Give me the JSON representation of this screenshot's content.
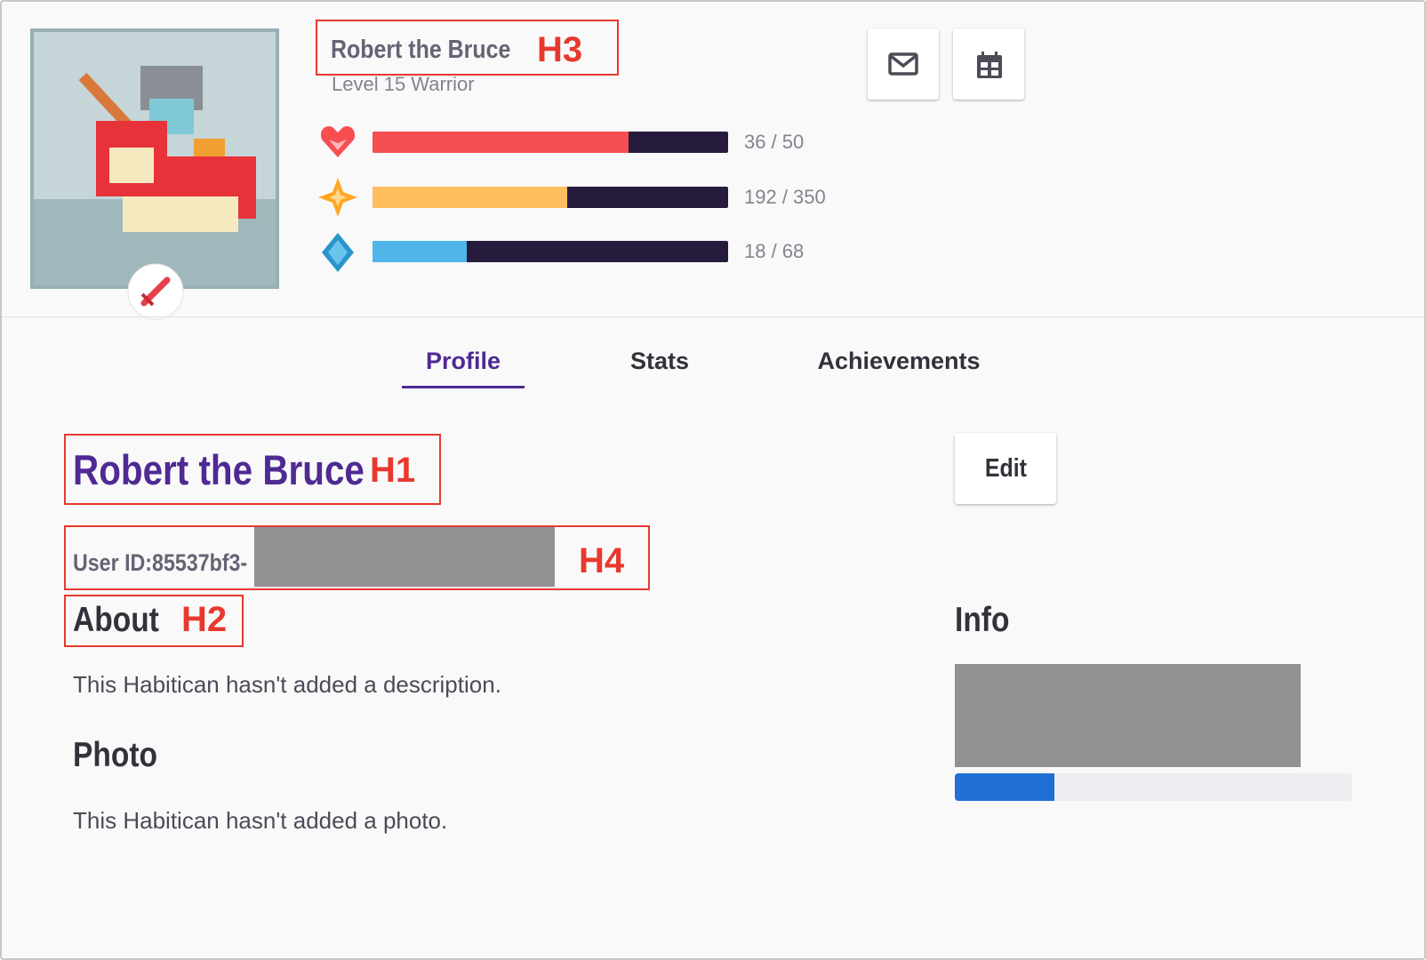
{
  "header": {
    "name": "Robert the Bruce",
    "name_tag": "H3",
    "level": "Level 15 Warrior",
    "stats": [
      {
        "value": 36,
        "max": 50,
        "label": "36 / 50"
      },
      {
        "value": 192,
        "max": 350,
        "label": "192 / 350"
      },
      {
        "value": 18,
        "max": 68,
        "label": "18 / 68"
      }
    ]
  },
  "tabs": [
    "Profile",
    "Stats",
    "Achievements"
  ],
  "profile": {
    "name": "Robert the Bruce",
    "name_tag": "H1",
    "edit": "Edit",
    "user_id": "User ID:85537bf3-",
    "user_id_tag": "H4",
    "about": "About",
    "about_tag": "H2",
    "about_text": "This Habitican hasn't added a description.",
    "photo": "Photo",
    "photo_text": "This Habitican hasn't added a photo.",
    "info": "Info"
  }
}
